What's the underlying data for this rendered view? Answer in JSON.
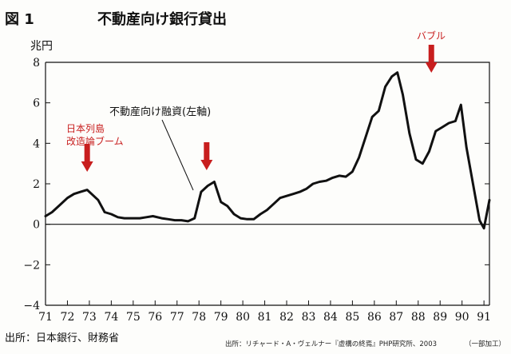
{
  "figure": {
    "number_label": "図 1",
    "title": "不動産向け銀行貸出"
  },
  "source_left": "出所：日本銀行、財務省",
  "source_right": "出所：リチャード・A・ヴェルナー『虚構の終焉』PHP研究所、2003",
  "source_note": "（一部加工）",
  "annotations": {
    "boom": [
      "日本列島",
      "改造論ブーム"
    ],
    "series_label": "不動産向け融資(左軸)",
    "bubble": "バブル"
  },
  "colors": {
    "arrow": "#c81e1e",
    "line": "#111111",
    "annotation_red": "#c81e1e"
  },
  "chart_data": {
    "type": "line",
    "title": "不動産向け銀行貸出",
    "ylabel": "兆円",
    "xlabel": "",
    "x_tick_labels": [
      "71",
      "72",
      "73",
      "74",
      "75",
      "76",
      "77",
      "78",
      "79",
      "80",
      "81",
      "82",
      "83",
      "84",
      "85",
      "86",
      "87",
      "88",
      "89",
      "90",
      "91"
    ],
    "y_ticks": [
      8,
      6,
      4,
      2,
      0,
      -2,
      -4
    ],
    "y_tick_labels": [
      "8",
      "6",
      "4",
      "2",
      "0",
      "−2",
      "−4"
    ],
    "xlim": [
      71,
      91.25
    ],
    "ylim": [
      -4,
      8
    ],
    "grid": false,
    "zero_line": true,
    "arrows_at_x": [
      72.9,
      78.35,
      88.6
    ],
    "series": [
      {
        "name": "不動産向け融資(左軸)",
        "x": [
          71.0,
          71.3,
          71.6,
          72.0,
          72.3,
          72.6,
          72.9,
          73.1,
          73.4,
          73.7,
          74.0,
          74.3,
          74.6,
          75.0,
          75.3,
          75.6,
          75.9,
          76.3,
          76.6,
          76.9,
          77.2,
          77.5,
          77.8,
          78.1,
          78.4,
          78.7,
          79.0,
          79.3,
          79.6,
          79.9,
          80.2,
          80.5,
          80.8,
          81.1,
          81.4,
          81.7,
          82.0,
          82.3,
          82.6,
          82.9,
          83.2,
          83.5,
          83.8,
          84.1,
          84.4,
          84.7,
          85.0,
          85.3,
          85.6,
          85.9,
          86.2,
          86.5,
          86.8,
          87.05,
          87.3,
          87.6,
          87.9,
          88.2,
          88.5,
          88.8,
          89.1,
          89.4,
          89.7,
          89.95,
          90.2,
          90.5,
          90.8,
          91.0,
          91.25
        ],
        "y": [
          0.4,
          0.6,
          0.9,
          1.3,
          1.5,
          1.6,
          1.7,
          1.5,
          1.2,
          0.6,
          0.5,
          0.35,
          0.3,
          0.3,
          0.3,
          0.35,
          0.4,
          0.3,
          0.25,
          0.2,
          0.2,
          0.15,
          0.3,
          1.6,
          1.9,
          2.1,
          1.1,
          0.9,
          0.5,
          0.3,
          0.25,
          0.25,
          0.5,
          0.7,
          1.0,
          1.3,
          1.4,
          1.5,
          1.6,
          1.75,
          2.0,
          2.1,
          2.15,
          2.3,
          2.4,
          2.35,
          2.6,
          3.3,
          4.3,
          5.3,
          5.6,
          6.8,
          7.3,
          7.5,
          6.4,
          4.5,
          3.2,
          3.0,
          3.6,
          4.6,
          4.8,
          5.0,
          5.1,
          5.9,
          3.8,
          2.0,
          0.2,
          -0.2,
          1.2
        ]
      }
    ]
  }
}
